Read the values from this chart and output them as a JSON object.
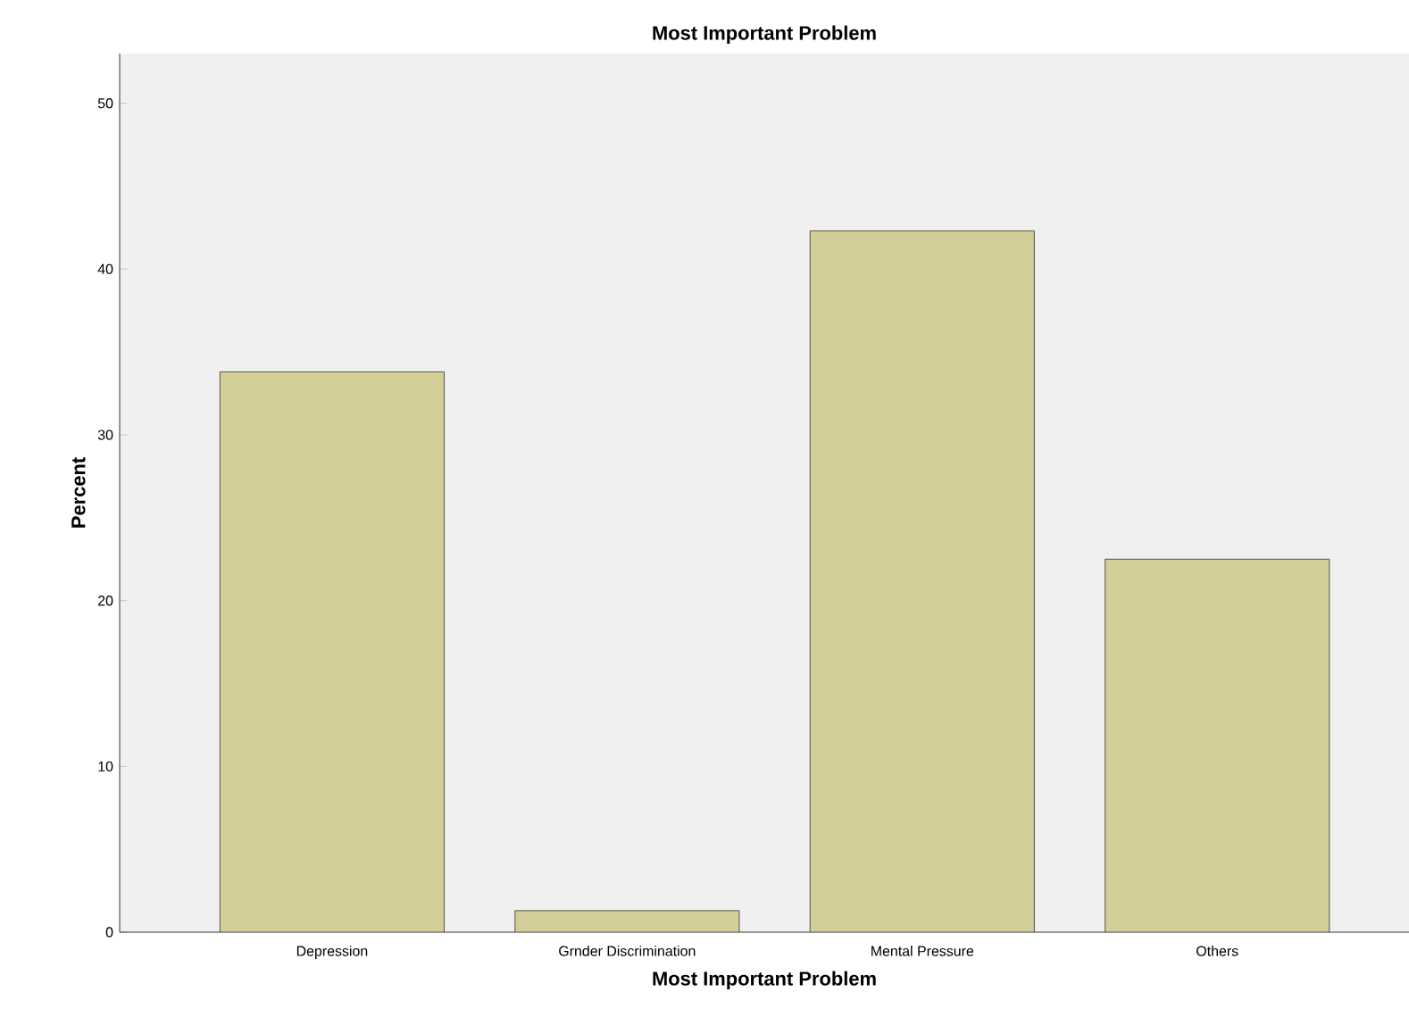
{
  "chart_data": {
    "type": "bar",
    "title": "Most Important Problem",
    "xlabel": "Most Important Problem",
    "ylabel": "Percent",
    "categories": [
      "Depression",
      "Grnder Discrimination",
      "Mental Pressure",
      "Others"
    ],
    "values": [
      33.8,
      1.3,
      42.3,
      22.5
    ],
    "color": "#d3ce97",
    "ylim": [
      0,
      53
    ],
    "yticks": [
      0,
      10,
      20,
      30,
      40,
      50
    ],
    "grid": false
  }
}
